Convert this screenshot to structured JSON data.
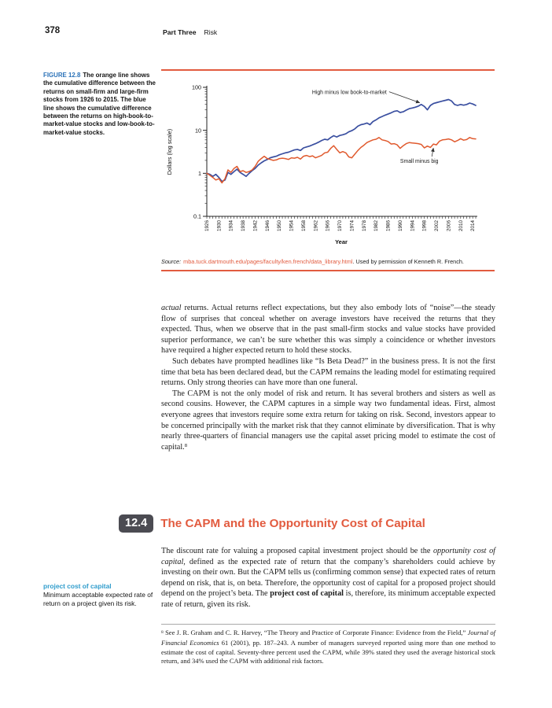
{
  "page": {
    "number": "378",
    "running_head_part": "Part Three",
    "running_head_topic": "Risk"
  },
  "figure": {
    "label": "FIGURE 12.8",
    "caption": "The orange line shows the cumulative difference between the returns on small-firm and large-firm stocks from 1926 to 2015. The blue line shows the cumulative difference between the returns on high-book-to-market-value stocks and low-book-to-market-value stocks.",
    "source_prefix": "Source:",
    "source_link": "mba.tuck.dartmouth.edu/pages/faculty/ken.french/data_library.html",
    "source_suffix": ". Used by permission of Kenneth R. French."
  },
  "chart_data": {
    "type": "line",
    "title": "",
    "xlabel": "Year",
    "ylabel": "Dollars (log scale)",
    "y_scale": "log",
    "ylim": [
      0.1,
      100
    ],
    "y_ticks": [
      100,
      10,
      1,
      0.1
    ],
    "x_range": [
      1926,
      2015
    ],
    "x_tick_labels": [
      1926,
      1930,
      1934,
      1938,
      1942,
      1946,
      1950,
      1954,
      1958,
      1962,
      1966,
      1970,
      1974,
      1978,
      1982,
      1986,
      1990,
      1994,
      1998,
      2002,
      2006,
      2010,
      2014
    ],
    "grid": false,
    "legend": "annotations-with-arrows",
    "series": [
      {
        "name": "High minus low book-to-market",
        "color": "#3a4fa0",
        "values": [
          1.0,
          0.95,
          0.85,
          0.95,
          0.8,
          0.65,
          0.7,
          1.05,
          0.95,
          1.1,
          1.25,
          1.05,
          0.95,
          0.85,
          1.0,
          1.15,
          1.3,
          1.55,
          1.75,
          1.95,
          2.1,
          2.3,
          2.4,
          2.5,
          2.7,
          2.85,
          3.0,
          3.1,
          3.3,
          3.5,
          3.6,
          3.4,
          3.9,
          4.1,
          4.3,
          4.6,
          4.9,
          5.3,
          5.8,
          6.2,
          6.0,
          6.8,
          7.5,
          7.0,
          7.6,
          7.9,
          8.3,
          9.2,
          9.8,
          10.8,
          12.5,
          13.5,
          14.0,
          14.8,
          13.5,
          16.0,
          17.5,
          19.5,
          21.0,
          22.5,
          24.0,
          25.5,
          27.5,
          28.5,
          26.0,
          27.0,
          29.5,
          32.0,
          33.0,
          34.5,
          36.5,
          40.0,
          36.0,
          30.0,
          38.0,
          42.0,
          44.0,
          46.0,
          48.0,
          50.0,
          52.0,
          48.0,
          40.0,
          38.0,
          40.0,
          38.5,
          40.0,
          43.0,
          41.0,
          38.0
        ]
      },
      {
        "name": "Small minus big",
        "color": "#e05a2e",
        "values": [
          1.0,
          0.9,
          0.8,
          0.7,
          0.75,
          0.6,
          0.75,
          1.2,
          1.05,
          1.3,
          1.45,
          1.1,
          1.15,
          1.05,
          1.1,
          1.2,
          1.45,
          1.9,
          2.2,
          2.5,
          2.2,
          2.1,
          2.0,
          2.05,
          2.2,
          2.25,
          2.2,
          2.1,
          2.3,
          2.25,
          2.35,
          2.15,
          2.5,
          2.6,
          2.45,
          2.55,
          2.3,
          2.45,
          2.6,
          3.0,
          3.1,
          3.8,
          4.4,
          3.6,
          3.0,
          3.2,
          3.0,
          2.4,
          2.3,
          2.8,
          3.4,
          4.0,
          4.5,
          5.2,
          5.6,
          6.0,
          6.2,
          6.8,
          6.0,
          5.8,
          5.5,
          4.8,
          4.9,
          4.6,
          3.8,
          4.4,
          4.9,
          5.2,
          5.1,
          5.0,
          4.9,
          4.7,
          3.9,
          4.3,
          4.0,
          4.8,
          4.6,
          5.6,
          6.0,
          6.1,
          6.3,
          6.0,
          5.4,
          5.8,
          6.4,
          5.9,
          6.1,
          6.8,
          6.4,
          6.3
        ]
      }
    ],
    "annotations": [
      {
        "text": "High minus low book-to-market",
        "tip": [
          1997,
          42
        ],
        "text_offset": [
          -44,
          -12
        ],
        "anchor": "end",
        "line_start": [
          3,
          -3
        ],
        "line_end": [
          -2,
          -1
        ]
      },
      {
        "text": "Small minus big",
        "tip": [
          2001,
          4.6
        ],
        "text_offset": [
          -18,
          23
        ],
        "anchor": "middle",
        "line_start": [
          16,
          -8
        ],
        "line_end": [
          0,
          4
        ]
      }
    ]
  },
  "body": {
    "p1": [
      {
        "t": "actual",
        "s": "i"
      },
      {
        "t": " returns. Actual returns reflect expectations, but they also embody lots of “noise”—the steady flow of surprises that conceal whether on average investors have received the returns that they expected. Thus, when we observe that in the past small-firm stocks and value stocks have provided superior performance, we can’t be sure whether this was simply a coincidence or whether investors have required a higher expected return to hold these stocks.",
        "s": "n"
      }
    ],
    "p2": [
      {
        "t": "Such debates have prompted headlines like “Is Beta Dead?” in the business press. It is not the first time that beta has been declared dead, but the CAPM remains the leading model for estimating required returns. Only strong theories can have more than one funeral.",
        "s": "n"
      }
    ],
    "p3": [
      {
        "t": "The CAPM is not the only model of risk and return. It has several brothers and sisters as well as second cousins. However, the CAPM captures in a simple way two fundamental ideas. First, almost everyone agrees that investors require some extra return for taking on risk. Second, investors appear to be concerned principally with the market risk that they cannot eliminate by diversification. That is why nearly three-quarters of financial managers use the capital asset pricing model to estimate the cost of capital.",
        "s": "n"
      },
      {
        "t": "8",
        "s": "sup"
      }
    ],
    "p4": [
      {
        "t": "The discount rate for valuing a proposed capital investment project should be the ",
        "s": "n"
      },
      {
        "t": "opportunity cost of capital",
        "s": "i"
      },
      {
        "t": ", defined as the expected rate of return that the company’s shareholders could achieve by investing on their own. But the CAPM tells us (confirming common sense) that expected rates of return depend on risk, that is, on beta. Therefore, the opportunity cost of capital for a proposed project should depend on the project’s beta. The ",
        "s": "n"
      },
      {
        "t": "project cost of capital",
        "s": "b"
      },
      {
        "t": " is, therefore, its minimum acceptable expected rate of return, given its risk.",
        "s": "n"
      }
    ]
  },
  "section": {
    "number": "12.4",
    "title": "The CAPM and the Opportunity Cost of Capital"
  },
  "margin_note": {
    "term": "project cost of capital",
    "definition": "Minimum acceptable expected rate of return on a project given its risk."
  },
  "footnote": [
    {
      "t": "8",
      "s": "sup"
    },
    {
      "t": " See J. R. Graham and C. R. Harvey, “The Theory and Practice of Corporate Finance: Evidence from the Field,” ",
      "s": "n"
    },
    {
      "t": "Journal of Financial Economics",
      "s": "i"
    },
    {
      "t": " 61 (2001), pp. 187–243. A number of managers surveyed reported using more than one method to estimate the cost of capital. Seventy-three percent used the CAPM, while 39% stated they used the average historical stock return, and 34% used the CAPM with additional risk factors.",
      "s": "n"
    }
  ],
  "colors": {
    "accent": "#e25b3f",
    "figure_label_blue": "#2b72b8",
    "margin_term_blue": "#2f9ccc",
    "section_box": "#4b4b52",
    "line_blue": "#3a4fa0",
    "line_orange": "#e05a2e"
  }
}
